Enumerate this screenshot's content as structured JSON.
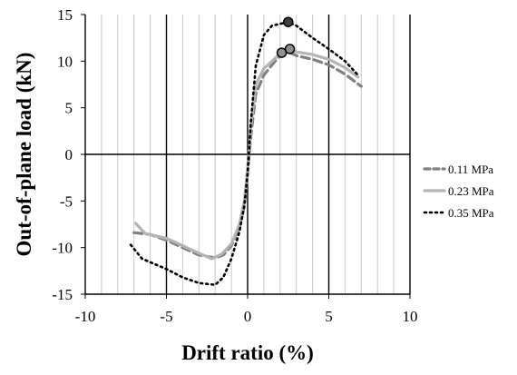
{
  "chart_data": {
    "type": "line",
    "title": "",
    "xlabel": "Drift ratio (%)",
    "ylabel": "Out-of-plane load  (kN)",
    "xlim": [
      -10,
      10
    ],
    "ylim": [
      -15,
      15
    ],
    "x_ticks": [
      -10,
      -5,
      0,
      5,
      10
    ],
    "y_ticks": [
      -15,
      -10,
      -5,
      0,
      5,
      10,
      15
    ],
    "grid": "vertical-minor",
    "legend_position": "right",
    "series": [
      {
        "name": "0.11 MPa",
        "color": "#808080",
        "dash": "dashed",
        "points": [
          [
            -7.0,
            -8.4
          ],
          [
            -6.0,
            -8.6
          ],
          [
            -5.0,
            -9.2
          ],
          [
            -4.0,
            -10.0
          ],
          [
            -3.0,
            -10.8
          ],
          [
            -2.0,
            -11.1
          ],
          [
            -1.5,
            -10.8
          ],
          [
            -1.0,
            -9.8
          ],
          [
            -0.5,
            -7.8
          ],
          [
            -0.2,
            -5.5
          ],
          [
            0.0,
            -2.0
          ],
          [
            0.2,
            2.0
          ],
          [
            0.5,
            6.5
          ],
          [
            1.0,
            8.5
          ],
          [
            1.5,
            9.6
          ],
          [
            2.0,
            10.6
          ],
          [
            2.5,
            11.0
          ],
          [
            3.0,
            10.6
          ],
          [
            4.0,
            10.2
          ],
          [
            5.0,
            9.6
          ],
          [
            6.0,
            8.6
          ],
          [
            7.0,
            7.3
          ]
        ]
      },
      {
        "name": "0.23 MPa",
        "color": "#b4b4b4",
        "dash": "solid",
        "points": [
          [
            -6.9,
            -7.4
          ],
          [
            -6.3,
            -8.5
          ],
          [
            -5.0,
            -9.0
          ],
          [
            -4.0,
            -9.8
          ],
          [
            -3.0,
            -10.6
          ],
          [
            -2.2,
            -11.2
          ],
          [
            -1.6,
            -10.7
          ],
          [
            -1.0,
            -9.6
          ],
          [
            -0.5,
            -7.5
          ],
          [
            -0.2,
            -5.0
          ],
          [
            0.0,
            -1.5
          ],
          [
            0.2,
            3.0
          ],
          [
            0.5,
            7.5
          ],
          [
            1.0,
            9.2
          ],
          [
            1.5,
            10.0
          ],
          [
            2.0,
            10.8
          ],
          [
            2.5,
            11.2
          ],
          [
            3.0,
            11.0
          ],
          [
            4.0,
            10.7
          ],
          [
            5.0,
            10.2
          ],
          [
            6.0,
            9.3
          ],
          [
            6.8,
            8.3
          ]
        ]
      },
      {
        "name": "0.35 MPa",
        "color": "#000000",
        "dash": "dotted",
        "points": [
          [
            -7.2,
            -9.7
          ],
          [
            -6.5,
            -11.2
          ],
          [
            -5.0,
            -12.3
          ],
          [
            -4.0,
            -13.2
          ],
          [
            -3.0,
            -13.8
          ],
          [
            -2.0,
            -14.0
          ],
          [
            -1.5,
            -13.2
          ],
          [
            -1.0,
            -11.2
          ],
          [
            -0.5,
            -8.3
          ],
          [
            -0.2,
            -5.5
          ],
          [
            0.0,
            -2.0
          ],
          [
            0.2,
            3.5
          ],
          [
            0.5,
            9.5
          ],
          [
            1.0,
            12.8
          ],
          [
            1.5,
            13.8
          ],
          [
            2.0,
            14.0
          ],
          [
            2.5,
            14.2
          ],
          [
            3.0,
            13.8
          ],
          [
            4.0,
            12.5
          ],
          [
            5.0,
            11.3
          ],
          [
            6.0,
            10.0
          ],
          [
            6.8,
            8.5
          ]
        ]
      }
    ],
    "markers": [
      {
        "x": 2.5,
        "y": 14.2,
        "fill": "#404040"
      },
      {
        "x": 2.1,
        "y": 10.9,
        "fill": "#909090"
      },
      {
        "x": 2.6,
        "y": 11.3,
        "fill": "#909090"
      }
    ]
  }
}
